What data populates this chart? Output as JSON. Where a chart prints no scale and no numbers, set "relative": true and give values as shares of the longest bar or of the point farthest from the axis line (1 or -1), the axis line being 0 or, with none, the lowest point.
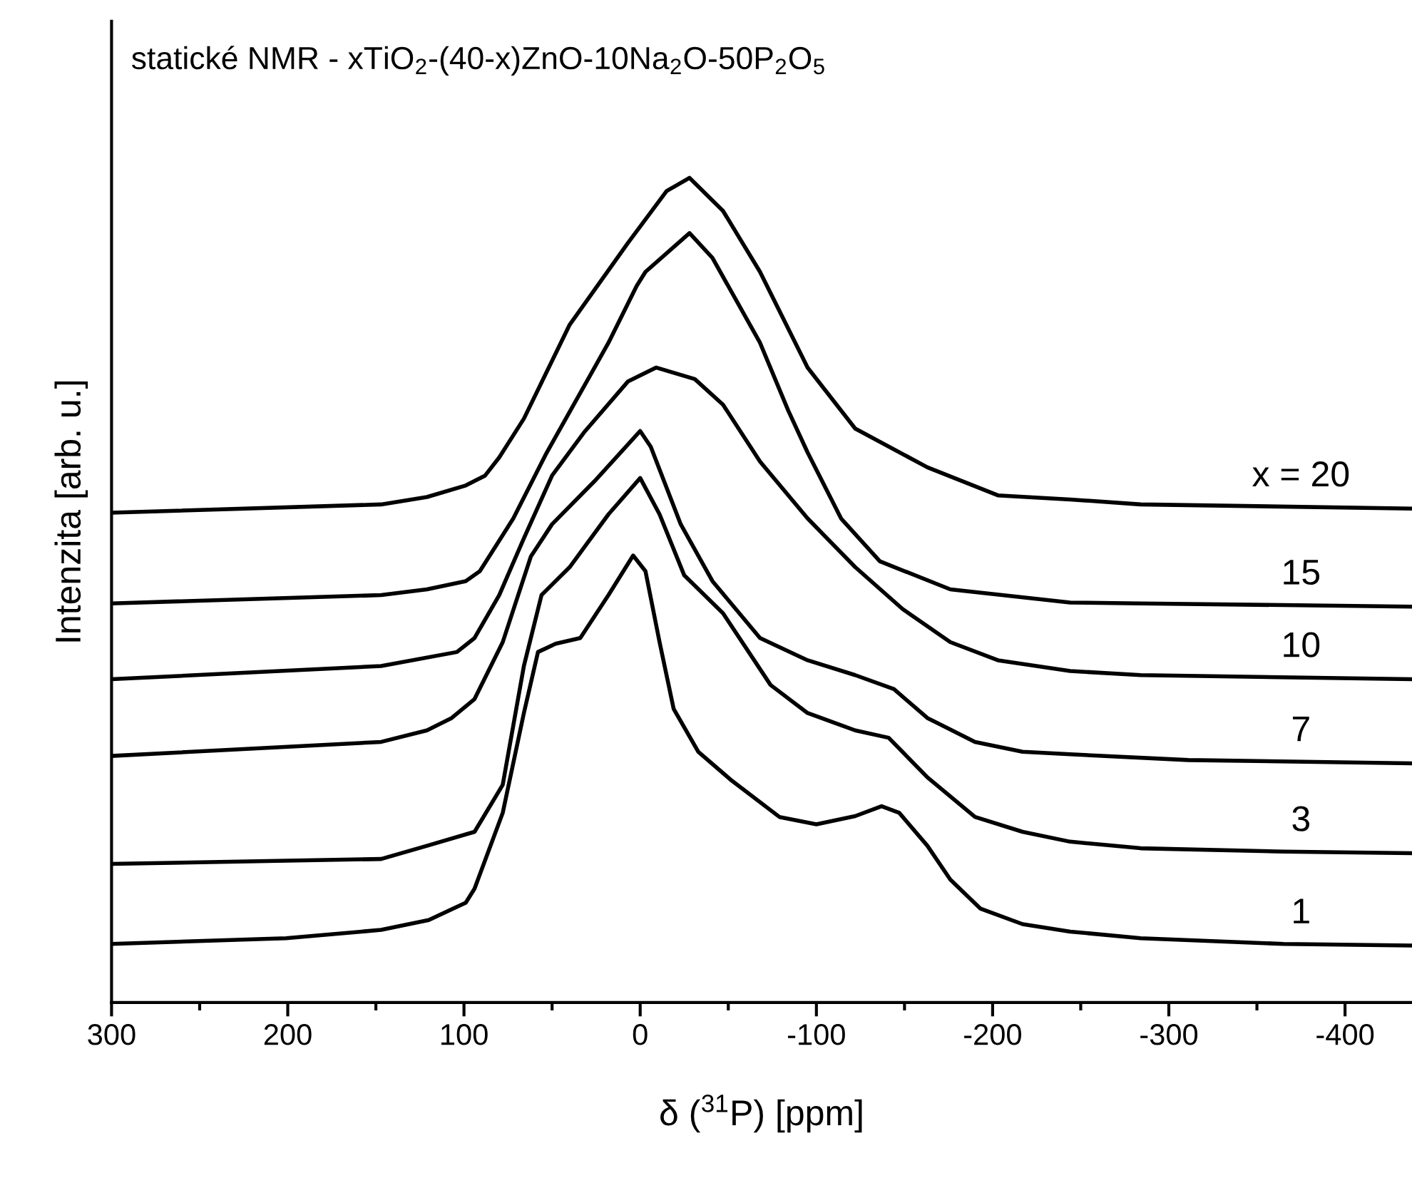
{
  "chart_data": {
    "type": "line",
    "relative": true,
    "title": "statické NMR - xTiO$_{2}$-(40-x)ZnO-10Na$_{2}$O-50P$_{2}$O$_{5}$",
    "xlabel": "δ ($^{31}$P) [ppm]",
    "ylabel": "Intenzita [arb. u.]",
    "xlim": [
      300,
      -438
    ],
    "xticks": [
      300,
      200,
      100,
      0,
      -100,
      -200,
      -300,
      -400
    ],
    "tick_labels": "x",
    "grid": false,
    "legend": false,
    "marker": "none",
    "line_style": "solid",
    "series": [
      {
        "name": "x = 20",
        "color": "#000000",
        "x": [
          300,
          147,
          121,
          99,
          88,
          80,
          66,
          40,
          7,
          -15,
          -28,
          -47,
          -68,
          -95,
          -122,
          -163,
          -203,
          -244,
          -284,
          -438
        ],
        "values": [
          0.594,
          0.604,
          0.613,
          0.627,
          0.639,
          0.661,
          0.708,
          0.822,
          0.921,
          0.984,
          1.0,
          0.96,
          0.886,
          0.77,
          0.696,
          0.649,
          0.615,
          0.61,
          0.604,
          0.599
        ]
      },
      {
        "name": "15",
        "color": "#000000",
        "x": [
          300,
          147,
          121,
          99,
          91,
          72,
          53,
          18,
          2,
          -3,
          -28,
          -41,
          -68,
          -84,
          -95,
          -114,
          -136,
          -176,
          -244,
          -284,
          -438
        ],
        "values": [
          0.484,
          0.494,
          0.501,
          0.511,
          0.523,
          0.587,
          0.667,
          0.8,
          0.869,
          0.886,
          0.933,
          0.903,
          0.8,
          0.718,
          0.667,
          0.587,
          0.535,
          0.501,
          0.485,
          0.484,
          0.48
        ]
      },
      {
        "name": "10",
        "color": "#000000",
        "x": [
          300,
          147,
          104,
          94,
          80,
          66,
          50,
          32,
          7,
          -9,
          -31,
          -47,
          -68,
          -95,
          -122,
          -149,
          -176,
          -203,
          -244,
          -284,
          -438
        ],
        "values": [
          0.392,
          0.408,
          0.425,
          0.442,
          0.494,
          0.563,
          0.639,
          0.691,
          0.753,
          0.77,
          0.756,
          0.725,
          0.656,
          0.587,
          0.528,
          0.477,
          0.437,
          0.415,
          0.402,
          0.397,
          0.392
        ]
      },
      {
        "name": "7",
        "color": "#000000",
        "x": [
          300,
          147,
          121,
          107,
          94,
          78,
          62,
          50,
          26,
          0,
          -6,
          -23,
          -41,
          -68,
          -95,
          -122,
          -144,
          -163,
          -190,
          -217,
          -244,
          -311,
          -438
        ],
        "values": [
          0.299,
          0.316,
          0.33,
          0.345,
          0.368,
          0.437,
          0.541,
          0.58,
          0.632,
          0.693,
          0.674,
          0.58,
          0.511,
          0.442,
          0.415,
          0.397,
          0.38,
          0.345,
          0.316,
          0.304,
          0.301,
          0.294,
          0.29
        ]
      },
      {
        "name": "3",
        "color": "#000000",
        "x": [
          300,
          147,
          121,
          94,
          78,
          66,
          56,
          40,
          18,
          0,
          -11,
          -25,
          -47,
          -74,
          -95,
          -122,
          -141,
          -163,
          -190,
          -217,
          -244,
          -284,
          -365,
          -438
        ],
        "values": [
          0.168,
          0.174,
          0.19,
          0.207,
          0.264,
          0.408,
          0.494,
          0.528,
          0.592,
          0.636,
          0.592,
          0.518,
          0.472,
          0.385,
          0.351,
          0.33,
          0.321,
          0.273,
          0.225,
          0.207,
          0.195,
          0.187,
          0.183,
          0.181
        ]
      },
      {
        "name": "1",
        "color": "#000000",
        "x": [
          300,
          201,
          147,
          120,
          99,
          94,
          78,
          66,
          58,
          48,
          34,
          18,
          4,
          -3,
          -11,
          -19,
          -33,
          -52,
          -79,
          -100,
          -122,
          -137,
          -147,
          -163,
          -176,
          -193,
          -217,
          -244,
          -284,
          -365,
          -438
        ],
        "values": [
          0.071,
          0.078,
          0.088,
          0.1,
          0.121,
          0.138,
          0.23,
          0.351,
          0.425,
          0.435,
          0.442,
          0.494,
          0.542,
          0.523,
          0.437,
          0.356,
          0.304,
          0.269,
          0.225,
          0.216,
          0.226,
          0.238,
          0.23,
          0.19,
          0.149,
          0.114,
          0.095,
          0.086,
          0.078,
          0.071,
          0.069
        ]
      }
    ]
  }
}
